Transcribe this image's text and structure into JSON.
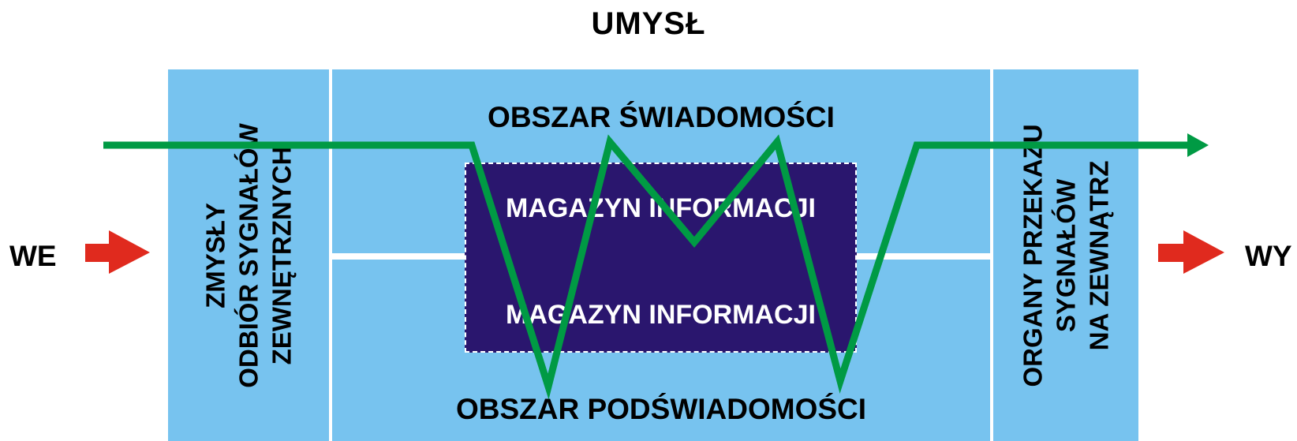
{
  "title": "UMYSŁ",
  "input_label": "WE",
  "output_label": "WY",
  "senses": {
    "line1": "ZMYSŁY",
    "line2": "ODBIÓR SYGNAŁÓW",
    "line3": "ZEWNĘTRZNYCH"
  },
  "organs": {
    "line1": "ORGANY PRZEKAZU",
    "line2": "SYGNAŁÓW",
    "line3": "NA  ZEWNĄTRZ"
  },
  "consciousness_label": "OBSZAR ŚWIADOMOŚCI",
  "subconscious_label": "OBSZAR PODŚWIADOMOŚCI",
  "store_upper_label": "MAGAZYN INFORMACJI",
  "store_lower_label": "MAGAZYN INFORMACJI",
  "colors": {
    "panel": "#77c3ef",
    "store": "#2a166e",
    "signal_line": "#009a44",
    "io_arrow": "#e02a1e"
  }
}
